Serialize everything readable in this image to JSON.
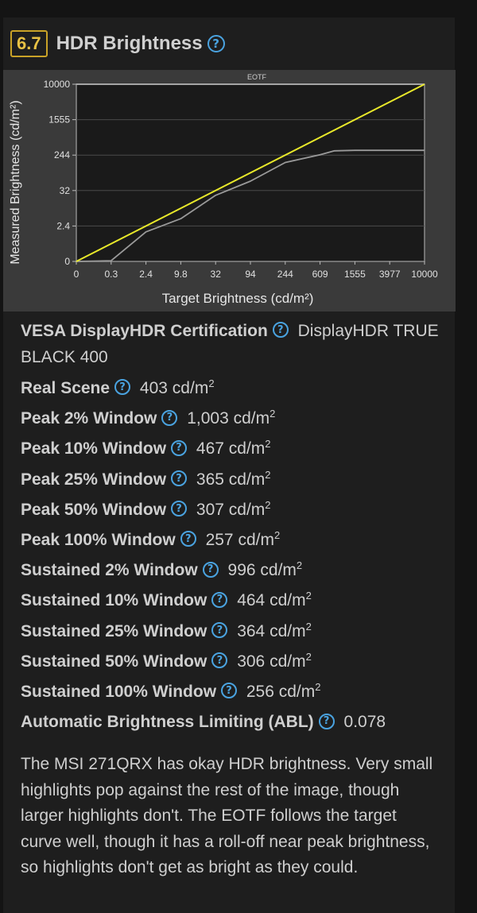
{
  "header": {
    "score": "6.7",
    "title": "HDR Brightness"
  },
  "chart_data": {
    "type": "line",
    "title": "EOTF",
    "xlabel": "Target Brightness (cd/m²)",
    "ylabel": "Measured Brightness (cd/m²)",
    "x_ticks": [
      "0",
      "0.3",
      "2.4",
      "9.8",
      "32",
      "94",
      "244",
      "609",
      "1555",
      "3977",
      "10000"
    ],
    "y_ticks": [
      "0",
      "2.4",
      "32",
      "244",
      "1555",
      "10000"
    ],
    "grid": true,
    "series": [
      {
        "color": "#e8e82a",
        "x": [
          0,
          10000
        ],
        "y": [
          0,
          10000
        ]
      },
      {
        "color": "#9a9a9a",
        "x": [
          0,
          0.3,
          2.4,
          9.8,
          32,
          94,
          244,
          609,
          1000,
          1555,
          3977,
          10000
        ],
        "y": [
          0,
          0.05,
          2.0,
          8.5,
          28,
          88,
          200,
          260,
          403,
          420,
          420,
          420
        ]
      },
      {
        "color": "#b0b0b0",
        "x": [
          0,
          10000
        ],
        "y": [
          10000,
          10000
        ]
      }
    ]
  },
  "specs": [
    {
      "label": "VESA DisplayHDR Certification",
      "value": "DisplayHDR TRUE BLACK 400",
      "unit": ""
    },
    {
      "label": "Real Scene",
      "value": "403",
      "unit": "cd/m"
    },
    {
      "label": "Peak 2% Window",
      "value": "1,003",
      "unit": "cd/m"
    },
    {
      "label": "Peak 10% Window",
      "value": "467",
      "unit": "cd/m"
    },
    {
      "label": "Peak 25% Window",
      "value": "365",
      "unit": "cd/m"
    },
    {
      "label": "Peak 50% Window",
      "value": "307",
      "unit": "cd/m"
    },
    {
      "label": "Peak 100% Window",
      "value": "257",
      "unit": "cd/m"
    },
    {
      "label": "Sustained 2% Window",
      "value": "996",
      "unit": "cd/m"
    },
    {
      "label": "Sustained 10% Window",
      "value": "464",
      "unit": "cd/m"
    },
    {
      "label": "Sustained 25% Window",
      "value": "364",
      "unit": "cd/m"
    },
    {
      "label": "Sustained 50% Window",
      "value": "306",
      "unit": "cd/m"
    },
    {
      "label": "Sustained 100% Window",
      "value": "256",
      "unit": "cd/m"
    },
    {
      "label": "Automatic Brightness Limiting (ABL)",
      "value": "0.078",
      "unit": ""
    }
  ],
  "unit_exponent": "2",
  "help_glyph": "?",
  "description": "The MSI 271QRX has okay HDR brightness. Very small highlights pop against the rest of the image, though larger highlights don't. The EOTF follows the target curve well, though it has a roll-off near peak brightness, so highlights don't get as bright as they could."
}
